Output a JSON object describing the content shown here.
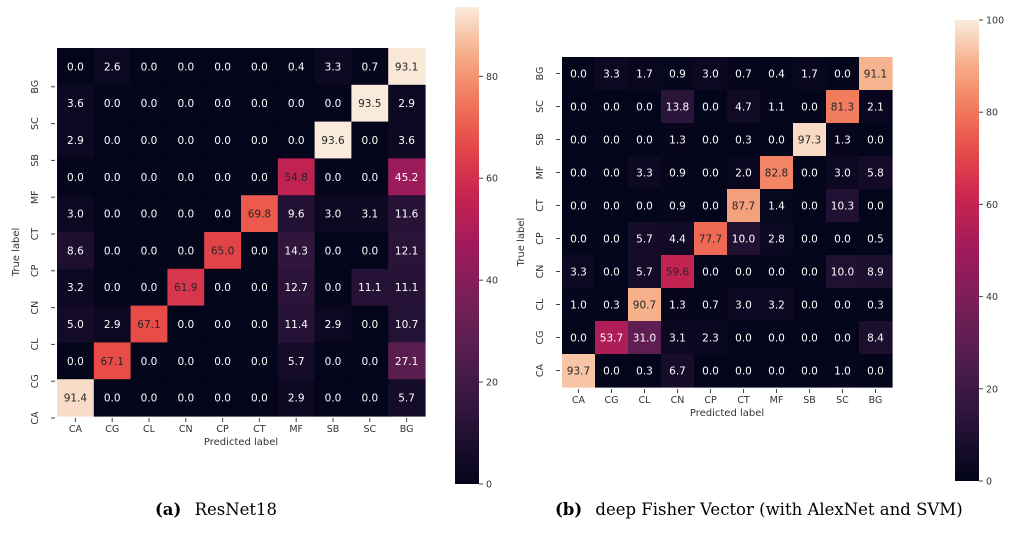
{
  "captions": [
    {
      "tag": "(a)",
      "text": "ResNet18"
    },
    {
      "tag": "(b)",
      "text": "deep Fisher Vector (with AlexNet and SVM)"
    }
  ],
  "chart_data": [
    {
      "type": "heatmap",
      "colormap": "rocket",
      "xlabel": "Predicted label",
      "ylabel": "True label",
      "x_categories": [
        "CA",
        "CG",
        "CL",
        "CN",
        "CP",
        "CT",
        "MF",
        "SB",
        "SC",
        "BG"
      ],
      "y_tick_labels": [
        "BG",
        "SC",
        "SB",
        "MF",
        "CT",
        "CP",
        "CN",
        "CL",
        "CG",
        "CA"
      ],
      "colorbar": {
        "min": 0,
        "max": 93.6,
        "ticks": [
          0,
          20,
          40,
          60,
          80
        ]
      },
      "values": [
        [
          0.0,
          2.6,
          0.0,
          0.0,
          0.0,
          0.0,
          0.4,
          3.3,
          0.7,
          93.1
        ],
        [
          3.6,
          0.0,
          0.0,
          0.0,
          0.0,
          0.0,
          0.0,
          0.0,
          93.5,
          2.9
        ],
        [
          2.9,
          0.0,
          0.0,
          0.0,
          0.0,
          0.0,
          0.0,
          93.6,
          0.0,
          3.6
        ],
        [
          0.0,
          0.0,
          0.0,
          0.0,
          0.0,
          0.0,
          54.8,
          0.0,
          0.0,
          45.2
        ],
        [
          3.0,
          0.0,
          0.0,
          0.0,
          0.0,
          69.8,
          9.6,
          3.0,
          3.1,
          11.6
        ],
        [
          8.6,
          0.0,
          0.0,
          0.0,
          65.0,
          0.0,
          14.3,
          0.0,
          0.0,
          12.1
        ],
        [
          3.2,
          0.0,
          0.0,
          61.9,
          0.0,
          0.0,
          12.7,
          0.0,
          11.1,
          11.1
        ],
        [
          5.0,
          2.9,
          67.1,
          0.0,
          0.0,
          0.0,
          11.4,
          2.9,
          0.0,
          10.7
        ],
        [
          0.0,
          67.1,
          0.0,
          0.0,
          0.0,
          0.0,
          5.7,
          0.0,
          0.0,
          27.1
        ],
        [
          91.4,
          0.0,
          0.0,
          0.0,
          0.0,
          0.0,
          2.9,
          0.0,
          0.0,
          5.7
        ]
      ]
    },
    {
      "type": "heatmap",
      "colormap": "rocket",
      "xlabel": "Predicted label",
      "ylabel": "True label",
      "x_categories": [
        "CA",
        "CG",
        "CL",
        "CN",
        "CP",
        "CT",
        "MF",
        "SB",
        "SC",
        "BG"
      ],
      "y_tick_labels": [
        "BG",
        "SC",
        "SB",
        "MF",
        "CT",
        "CP",
        "CN",
        "CL",
        "CG",
        "CA"
      ],
      "colorbar": {
        "min": 0,
        "max": 100,
        "ticks": [
          0,
          20,
          40,
          60,
          80,
          100
        ]
      },
      "values": [
        [
          0.0,
          3.3,
          1.7,
          0.9,
          3.0,
          0.7,
          0.4,
          1.7,
          0.0,
          91.1
        ],
        [
          0.0,
          0.0,
          0.0,
          13.8,
          0.0,
          4.7,
          1.1,
          0.0,
          81.3,
          2.1
        ],
        [
          0.0,
          0.0,
          0.0,
          1.3,
          0.0,
          0.3,
          0.0,
          97.3,
          1.3,
          0.0
        ],
        [
          0.0,
          0.0,
          3.3,
          0.9,
          0.0,
          2.0,
          82.8,
          0.0,
          3.0,
          5.8
        ],
        [
          0.0,
          0.0,
          0.0,
          0.9,
          0.0,
          87.7,
          1.4,
          0.0,
          10.3,
          0.0
        ],
        [
          0.0,
          0.0,
          5.7,
          4.4,
          77.7,
          10.0,
          2.8,
          0.0,
          0.0,
          0.5
        ],
        [
          3.3,
          0.0,
          5.7,
          59.6,
          0.0,
          0.0,
          0.0,
          0.0,
          10.0,
          8.9
        ],
        [
          1.0,
          0.3,
          90.7,
          1.3,
          0.7,
          3.0,
          3.2,
          0.0,
          0.0,
          0.3
        ],
        [
          0.0,
          53.7,
          31.0,
          3.1,
          2.3,
          0.0,
          0.0,
          0.0,
          0.0,
          8.4
        ],
        [
          93.7,
          0.0,
          0.3,
          6.7,
          0.0,
          0.0,
          0.0,
          0.0,
          1.0,
          0.0
        ]
      ]
    }
  ]
}
